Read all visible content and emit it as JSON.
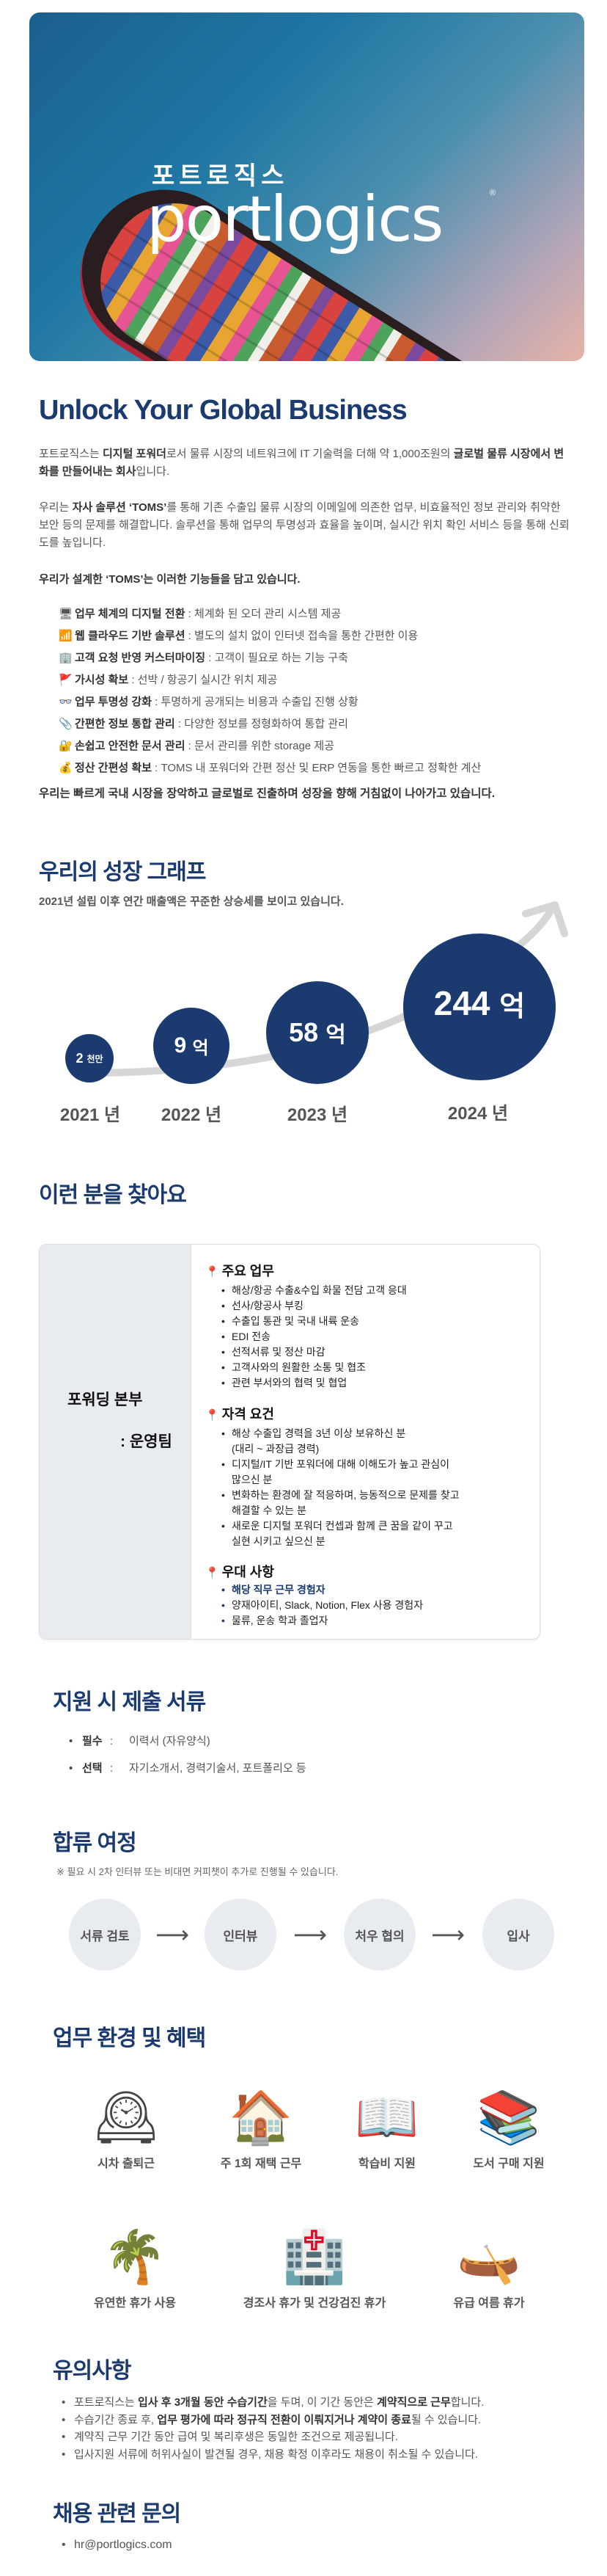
{
  "hero": {
    "logo_ko": "포트로직스",
    "logo_en": "portlogics",
    "logo_reg": "®"
  },
  "intro": {
    "title": "Unlock Your Global Business",
    "p1": [
      "포트로직스는 ",
      "디지털 포워더",
      "로서 물류 시장의 네트워크에 IT 기술력을 더해 약 1,000조원의 ",
      "글로벌 물류 시장에서 변화를 만들어내는 회사",
      "입니다."
    ],
    "p2": [
      "우리는 ",
      "자사 솔루션 ‘TOMS’",
      "를 통해 기존 수출입 물류 시장의 이메일에 의존한 업무, 비효율적인 정보 관리와 취약한 보안 등의 문제를 해결합니다. 솔루션을 통해 업무의 투명성과 효율을 높이며, 실시간 위치 확인 서비스 등을 통해 신뢰도를 높입니다."
    ],
    "features_lead": "우리가 설계한 ‘TOMS’는 이러한 기능들을 담고 있습니다.",
    "features": [
      {
        "icon": "desktop-computer",
        "glyph": "🖥",
        "title": "업무 체계의 디지털 전환",
        "desc": " : 체계화 된 오더 관리 시스템 제공"
      },
      {
        "icon": "wireless",
        "glyph": "📶",
        "title": "웹 클라우드 기반 솔루션",
        "desc": " : 별도의 설치 없이 인터넷 접속을 통한 간편한 이용"
      },
      {
        "icon": "office-building",
        "glyph": "🏢",
        "title": "고객 요청 반영 커스터마이징",
        "desc": " : 고객이 필요로 하는 기능 구축"
      },
      {
        "icon": "red-flag",
        "glyph": "🚩",
        "title": "가시성 확보",
        "desc": " : 선박 / 항공기 실시간 위치 제공"
      },
      {
        "icon": "glasses",
        "glyph": "👓",
        "title": "업무 투명성 강화",
        "desc": " : 투명하게 공개되는 비용과 수출입 진행 상황"
      },
      {
        "icon": "paperclip",
        "glyph": "📎",
        "title": "간편한 정보 통합 관리",
        "desc": " : 다양한 정보를 정형화하여 통합 관리"
      },
      {
        "icon": "lock-with-key",
        "glyph": "🔐",
        "title": "손쉽고 안전한 문서 관리",
        "desc": " : 문서 관리를 위한 storage 제공"
      },
      {
        "icon": "money-bag",
        "glyph": "💰",
        "title": "정산 간편성 확보",
        "desc": " : TOMS 내 포워더와 간편 정산 및 ERP 연동을 통한 빠르고 정확한 계산"
      }
    ],
    "closing": "우리는 빠르게 국내 시장을 장악하고 글로벌로 진출하며 성장을 향해 거침없이 나아가고 있습니다."
  },
  "growth": {
    "title": "우리의 성장 그래프",
    "subtitle": "2021년 설립 이후 연간 매출액은 꾸준한 상승세를 보이고 있습니다.",
    "items": [
      {
        "year": "2021 년",
        "amount": "2",
        "unit": "천만"
      },
      {
        "year": "2022 년",
        "amount": "9",
        "unit": "억"
      },
      {
        "year": "2023 년",
        "amount": "58",
        "unit": "억"
      },
      {
        "year": "2024 년",
        "amount": "244",
        "unit": "억"
      }
    ]
  },
  "job": {
    "title": "이런 분을 찾아요",
    "dept": "포워딩 본부",
    "team": ": 운영팀",
    "duties_title": "주요 업무",
    "duties": [
      "해상/항공 수출&수입 화물 전담 고객 응대",
      "선사/항공사 부킹",
      "수출입 통관 및 국내 내륙 운송",
      "EDI 전송",
      "선적서류 및 정산 마감",
      "고객사와의 원활한 소통 및 협조",
      "관련 부서와의 협력 및 협업"
    ],
    "req_title": "자격 요건",
    "reqs": [
      "해상 수출입 경력을 3년 이상 보유하신 분\n(대리 ~ 과장급 경력)",
      "디지털/IT 기반 포워더에 대해 이해도가 높고 관심이\n많으신 분",
      "변화하는 환경에 잘 적응하며, 능동적으로 문제를 찾고\n해결할 수 있는 분",
      "새로운 디지털 포워더 컨셉과 함께 큰 꿈을 같이 꾸고\n실현 시키고 싶으신 분"
    ],
    "pref_title": "우대 사항",
    "prefs": [
      "해당 직무 근무 경험자",
      "양재아이티, Slack, Notion, Flex 사용 경험자",
      "물류, 운송 학과 졸업자"
    ]
  },
  "docs": {
    "title": "지원 시 제출 서류",
    "items": [
      {
        "label": "필수",
        "value": "이력서 (자유양식)"
      },
      {
        "label": "선택",
        "value": "자기소개서, 경력기술서, 포트폴리오 등"
      }
    ]
  },
  "process": {
    "title": "합류 여정",
    "note": "※ 필요 시 2차 인터뷰 또는 비대면 커피챗이 추가로 진행될 수 있습니다.",
    "steps": [
      "서류 검토",
      "인터뷰",
      "처우 협의",
      "입사"
    ],
    "arrow": "⟶"
  },
  "benefits": {
    "title": "업무 환경 및 혜택",
    "items": [
      {
        "icon": "mantelpiece-clock",
        "glyph": "🕰",
        "label": "시차 출퇴근"
      },
      {
        "icon": "house",
        "glyph": "🏠",
        "label": "주 1회 재택 근무"
      },
      {
        "icon": "open-book",
        "glyph": "📖",
        "label": "학습비 지원"
      },
      {
        "icon": "books",
        "glyph": "📚",
        "label": "도서 구매 지원"
      },
      {
        "icon": "palm-tree",
        "glyph": "🌴",
        "label": "유연한 휴가 사용"
      },
      {
        "icon": "hospital",
        "glyph": "🏥",
        "label": "경조사 휴가 및 건강검진 휴가"
      },
      {
        "icon": "canoe",
        "glyph": "🛶",
        "label": "유급 여름 휴가"
      }
    ]
  },
  "notes": {
    "title": "유의사항",
    "items": [
      [
        "포트로직스는 ",
        "입사 후 3개월 동안 수습기간",
        "을 두며, 이 기간 동안은 ",
        "계약직으로 근무",
        "합니다."
      ],
      [
        "수습기간 종료 후, ",
        "업무 평가에 따라 정규직 전환이 이뤄지거나 계약이 종료",
        "될 수 있습니다."
      ],
      [
        "계약직 근무 기간 동안 급여 및 복리후생은 동일한 조건으로 제공됩니다."
      ],
      [
        "입사지원 서류에 허위사실이 발견될 경우, 채용 확정 이후라도 채용이 취소될 수 있습니다."
      ]
    ]
  },
  "contact": {
    "title": "채용 관련 문의",
    "email": "hr@portlogics.com"
  },
  "colors": {
    "accent": "#1b3a70",
    "panel": "#e8ebf0",
    "text": "#555555",
    "pin": "#dd2222"
  }
}
